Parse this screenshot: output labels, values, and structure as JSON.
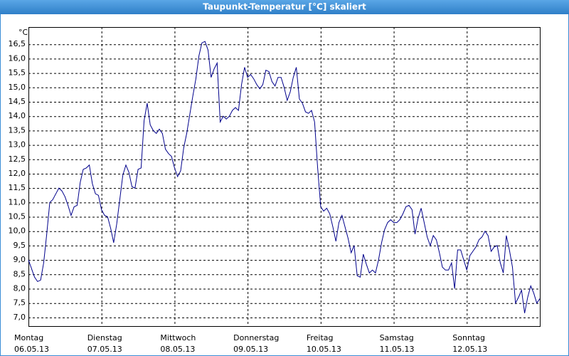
{
  "chart_data": {
    "type": "line",
    "title": "Taupunkt-Temperatur [°C] skaliert",
    "y_unit": "°C",
    "color": "#00008b",
    "grid": true,
    "xlim": [
      0,
      168
    ],
    "ylim": [
      6.7,
      17.1
    ],
    "xticks": [
      {
        "value": 0,
        "label": "Montag"
      },
      {
        "value": 24,
        "label": "Dienstag"
      },
      {
        "value": 48,
        "label": "Mittwoch"
      },
      {
        "value": 72,
        "label": "Donnerstag"
      },
      {
        "value": 96,
        "label": "Freitag"
      },
      {
        "value": 120,
        "label": "Samstag"
      },
      {
        "value": 144,
        "label": "Sonntag"
      }
    ],
    "xtick_dates": [
      "06.05.13",
      "07.05.13",
      "08.05.13",
      "09.05.13",
      "10.05.13",
      "11.05.13",
      "12.05.13"
    ],
    "yticks": [
      {
        "value": 7,
        "label": "7,0"
      },
      {
        "value": 7.5,
        "label": "7,5"
      },
      {
        "value": 8,
        "label": "8,0"
      },
      {
        "value": 8.5,
        "label": "8,5"
      },
      {
        "value": 9,
        "label": "9,0"
      },
      {
        "value": 9.5,
        "label": "9,5"
      },
      {
        "value": 10,
        "label": "10,0"
      },
      {
        "value": 10.5,
        "label": "10,5"
      },
      {
        "value": 11,
        "label": "11,0"
      },
      {
        "value": 11.5,
        "label": "11,5"
      },
      {
        "value": 12,
        "label": "12,0"
      },
      {
        "value": 12.5,
        "label": "12,5"
      },
      {
        "value": 13,
        "label": "13,0"
      },
      {
        "value": 13.5,
        "label": "13,5"
      },
      {
        "value": 14,
        "label": "14,0"
      },
      {
        "value": 14.5,
        "label": "14,5"
      },
      {
        "value": 15,
        "label": "15,0"
      },
      {
        "value": 15.5,
        "label": "15,5"
      },
      {
        "value": 16,
        "label": "16,0"
      },
      {
        "value": 16.5,
        "label": "16,5"
      }
    ],
    "x": [
      0,
      1,
      2,
      3,
      4,
      5,
      6,
      7,
      8,
      9,
      10,
      11,
      12,
      13,
      14,
      15,
      16,
      17,
      18,
      19,
      20,
      21,
      22,
      23,
      24,
      25,
      26,
      27,
      28,
      29,
      30,
      31,
      32,
      33,
      34,
      35,
      36,
      37,
      38,
      39,
      40,
      41,
      42,
      43,
      44,
      45,
      46,
      47,
      48,
      49,
      50,
      51,
      52,
      53,
      54,
      55,
      56,
      57,
      58,
      59,
      60,
      61,
      62,
      63,
      64,
      65,
      66,
      67,
      68,
      69,
      70,
      71,
      72,
      73,
      74,
      75,
      76,
      77,
      78,
      79,
      80,
      81,
      82,
      83,
      84,
      85,
      86,
      87,
      88,
      89,
      90,
      91,
      92,
      93,
      94,
      95,
      96,
      97,
      98,
      99,
      100,
      101,
      102,
      103,
      104,
      105,
      106,
      107,
      108,
      109,
      110,
      111,
      112,
      113,
      114,
      115,
      116,
      117,
      118,
      119,
      120,
      121,
      122,
      123,
      124,
      125,
      126,
      127,
      128,
      129,
      130,
      131,
      132,
      133,
      134,
      135,
      136,
      137,
      138,
      139,
      140,
      141,
      142,
      143,
      144,
      145,
      146,
      147,
      148,
      149,
      150,
      151,
      152,
      153,
      154,
      155,
      156,
      157,
      158,
      159,
      160,
      161,
      162,
      163,
      164,
      165,
      166,
      167,
      168
    ],
    "values": [
      9.0,
      8.7,
      8.4,
      8.25,
      8.3,
      8.9,
      9.9,
      11.0,
      11.1,
      11.3,
      11.5,
      11.4,
      11.2,
      10.9,
      10.55,
      10.85,
      10.9,
      11.7,
      12.15,
      12.2,
      12.3,
      11.65,
      11.3,
      11.25,
      10.75,
      10.55,
      10.5,
      10.1,
      9.6,
      10.25,
      11.1,
      11.95,
      12.3,
      12.05,
      11.55,
      11.5,
      12.15,
      12.2,
      13.85,
      14.45,
      13.7,
      13.5,
      13.4,
      13.55,
      13.4,
      12.85,
      12.7,
      12.6,
      12.2,
      11.9,
      12.1,
      12.9,
      13.4,
      14.05,
      14.7,
      15.3,
      16.1,
      16.55,
      16.6,
      16.3,
      15.35,
      15.65,
      15.85,
      13.8,
      14.0,
      13.9,
      14.0,
      14.2,
      14.3,
      14.2,
      15.1,
      15.7,
      15.35,
      15.45,
      15.3,
      15.1,
      14.95,
      15.1,
      15.6,
      15.55,
      15.2,
      15.05,
      15.35,
      15.35,
      15.0,
      14.55,
      14.85,
      15.35,
      15.7,
      14.6,
      14.45,
      14.15,
      14.1,
      14.2,
      13.8,
      12.2,
      10.85,
      10.7,
      10.8,
      10.6,
      10.15,
      9.65,
      10.3,
      10.55,
      10.15,
      9.75,
      9.25,
      9.5,
      8.45,
      8.4,
      9.2,
      8.85,
      8.55,
      8.65,
      8.55,
      9.0,
      9.6,
      10.05,
      10.3,
      10.4,
      10.3,
      10.3,
      10.4,
      10.6,
      10.85,
      10.9,
      10.75,
      9.9,
      10.45,
      10.8,
      10.3,
      9.8,
      9.5,
      9.85,
      9.7,
      9.25,
      8.75,
      8.65,
      8.65,
      8.9,
      8.0,
      9.35,
      9.35,
      9.0,
      8.65,
      9.15,
      9.3,
      9.45,
      9.7,
      9.8,
      10.0,
      9.85,
      9.3,
      9.45,
      9.5,
      8.9,
      8.55,
      9.85,
      9.35,
      8.75,
      7.5,
      7.7,
      7.95,
      7.15,
      7.7,
      8.1,
      7.85,
      7.5,
      7.65
    ]
  }
}
